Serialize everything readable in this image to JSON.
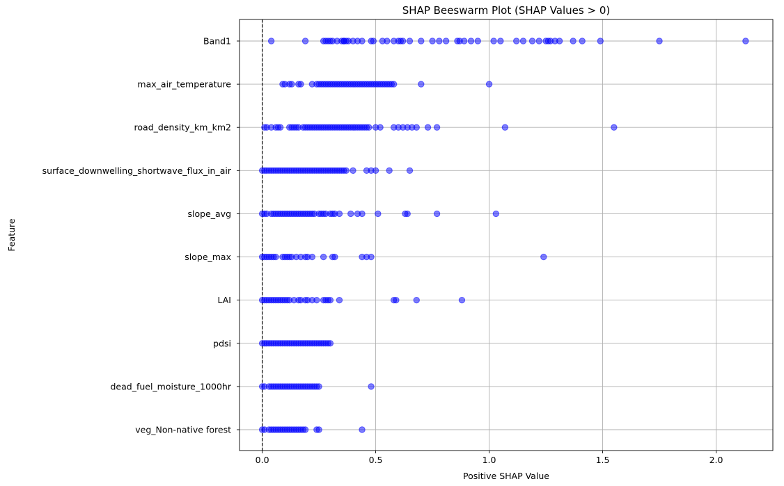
{
  "chart_data": {
    "type": "scatter",
    "title": "SHAP Beeswarm Plot (SHAP Values > 0)",
    "xlabel": "Positive SHAP Value",
    "ylabel": "Feature",
    "xlim": [
      -0.1,
      2.25
    ],
    "xticks": [
      "0.0",
      "0.5",
      "1.0",
      "1.5",
      "2.0"
    ],
    "xtick_values": [
      0,
      0.5,
      1.0,
      1.5,
      2.0
    ],
    "grid": true,
    "reference_line": {
      "x": 0,
      "style": "dashed",
      "color": "#000000"
    },
    "marker_color": "#0000ff",
    "features": [
      {
        "name": "Band1",
        "values": [
          0.04,
          0.19,
          0.27,
          0.28,
          0.29,
          0.3,
          0.31,
          0.33,
          0.35,
          0.36,
          0.36,
          0.37,
          0.38,
          0.4,
          0.42,
          0.44,
          0.48,
          0.49,
          0.53,
          0.55,
          0.58,
          0.6,
          0.61,
          0.62,
          0.65,
          0.7,
          0.75,
          0.78,
          0.81,
          0.86,
          0.87,
          0.89,
          0.92,
          0.95,
          1.02,
          1.05,
          1.12,
          1.15,
          1.19,
          1.22,
          1.25,
          1.26,
          1.27,
          1.29,
          1.31,
          1.37,
          1.41,
          1.49,
          1.75,
          2.13
        ]
      },
      {
        "name": "max_air_temperature",
        "values": [
          0.09,
          0.1,
          0.12,
          0.13,
          0.16,
          0.17,
          0.22,
          0.24,
          0.25,
          0.26,
          0.27,
          0.28,
          0.29,
          0.3,
          0.31,
          0.32,
          0.33,
          0.34,
          0.35,
          0.36,
          0.37,
          0.38,
          0.39,
          0.4,
          0.41,
          0.42,
          0.43,
          0.44,
          0.45,
          0.46,
          0.47,
          0.48,
          0.49,
          0.5,
          0.51,
          0.52,
          0.53,
          0.54,
          0.55,
          0.56,
          0.57,
          0.58,
          0.7,
          1.0
        ]
      },
      {
        "name": "road_density_km_km2",
        "values": [
          0.01,
          0.02,
          0.04,
          0.06,
          0.07,
          0.08,
          0.12,
          0.13,
          0.14,
          0.15,
          0.16,
          0.18,
          0.19,
          0.2,
          0.21,
          0.22,
          0.23,
          0.24,
          0.25,
          0.26,
          0.27,
          0.28,
          0.29,
          0.3,
          0.31,
          0.32,
          0.33,
          0.34,
          0.35,
          0.36,
          0.37,
          0.38,
          0.39,
          0.4,
          0.41,
          0.42,
          0.43,
          0.44,
          0.45,
          0.46,
          0.47,
          0.5,
          0.52,
          0.58,
          0.6,
          0.62,
          0.64,
          0.66,
          0.68,
          0.73,
          0.77,
          1.07,
          1.55
        ]
      },
      {
        "name": "surface_downwelling_shortwave_flux_in_air",
        "values": [
          0.0,
          0.01,
          0.02,
          0.03,
          0.04,
          0.05,
          0.06,
          0.07,
          0.08,
          0.09,
          0.1,
          0.11,
          0.12,
          0.13,
          0.14,
          0.15,
          0.16,
          0.17,
          0.18,
          0.19,
          0.2,
          0.21,
          0.22,
          0.23,
          0.24,
          0.25,
          0.26,
          0.27,
          0.28,
          0.29,
          0.3,
          0.31,
          0.32,
          0.33,
          0.34,
          0.35,
          0.36,
          0.37,
          0.4,
          0.46,
          0.48,
          0.5,
          0.56,
          0.65
        ]
      },
      {
        "name": "slope_avg",
        "values": [
          0.0,
          0.01,
          0.02,
          0.04,
          0.05,
          0.06,
          0.07,
          0.08,
          0.09,
          0.1,
          0.11,
          0.12,
          0.13,
          0.14,
          0.15,
          0.16,
          0.17,
          0.18,
          0.19,
          0.2,
          0.21,
          0.22,
          0.23,
          0.25,
          0.26,
          0.27,
          0.28,
          0.3,
          0.31,
          0.32,
          0.34,
          0.39,
          0.42,
          0.44,
          0.51,
          0.63,
          0.64,
          0.77,
          1.03
        ]
      },
      {
        "name": "slope_max",
        "values": [
          0.0,
          0.01,
          0.02,
          0.03,
          0.04,
          0.05,
          0.06,
          0.09,
          0.1,
          0.11,
          0.12,
          0.13,
          0.15,
          0.17,
          0.19,
          0.2,
          0.22,
          0.27,
          0.31,
          0.32,
          0.44,
          0.46,
          0.48,
          1.24
        ]
      },
      {
        "name": "LAI",
        "values": [
          0.0,
          0.01,
          0.02,
          0.03,
          0.04,
          0.05,
          0.06,
          0.07,
          0.08,
          0.09,
          0.1,
          0.11,
          0.12,
          0.14,
          0.16,
          0.17,
          0.19,
          0.2,
          0.22,
          0.24,
          0.27,
          0.28,
          0.29,
          0.3,
          0.34,
          0.58,
          0.59,
          0.68,
          0.88
        ]
      },
      {
        "name": "pdsi",
        "values": [
          0.0,
          0.01,
          0.02,
          0.03,
          0.04,
          0.05,
          0.06,
          0.07,
          0.08,
          0.09,
          0.1,
          0.11,
          0.12,
          0.13,
          0.14,
          0.15,
          0.16,
          0.17,
          0.18,
          0.19,
          0.2,
          0.21,
          0.22,
          0.23,
          0.24,
          0.25,
          0.26,
          0.27,
          0.28,
          0.29,
          0.3
        ]
      },
      {
        "name": "dead_fuel_moisture_1000hr",
        "values": [
          0.0,
          0.01,
          0.03,
          0.04,
          0.05,
          0.06,
          0.07,
          0.08,
          0.09,
          0.1,
          0.11,
          0.12,
          0.13,
          0.14,
          0.15,
          0.16,
          0.17,
          0.18,
          0.19,
          0.2,
          0.21,
          0.22,
          0.23,
          0.24,
          0.25,
          0.48
        ]
      },
      {
        "name": "veg_Non-native forest ",
        "values": [
          0.0,
          0.01,
          0.03,
          0.04,
          0.05,
          0.06,
          0.07,
          0.08,
          0.09,
          0.1,
          0.11,
          0.12,
          0.13,
          0.14,
          0.15,
          0.16,
          0.17,
          0.18,
          0.19,
          0.24,
          0.25,
          0.44
        ]
      }
    ]
  }
}
